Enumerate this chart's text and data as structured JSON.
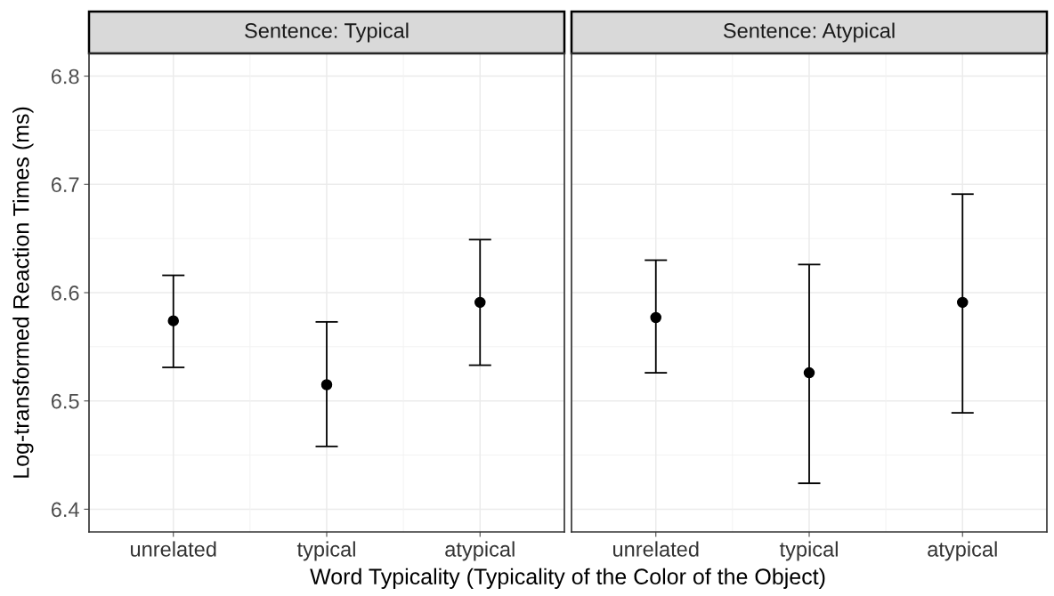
{
  "chart_data": [
    {
      "type": "scatter",
      "title": "Sentence: Typical",
      "xlabel": "Word Typicality (Typicality of the Color of the Object)",
      "ylabel": "Log-transformed Reaction Times (ms)",
      "categories": [
        "unrelated",
        "typical",
        "atypical"
      ],
      "series": [
        {
          "color": "#000000",
          "values": [
            6.574,
            6.515,
            6.591
          ],
          "errors": [
            [
              6.531,
              6.616
            ],
            [
              6.458,
              6.573
            ],
            [
              6.533,
              6.649
            ]
          ]
        }
      ],
      "ylim": [
        6.379,
        6.821
      ],
      "yticks": [
        6.4,
        6.5,
        6.6,
        6.7,
        6.8
      ],
      "grid": true,
      "marker": "circle"
    },
    {
      "type": "scatter",
      "title": "Sentence: Atypical",
      "categories": [
        "unrelated",
        "typical",
        "atypical"
      ],
      "series": [
        {
          "color": "#000000",
          "values": [
            6.577,
            6.526,
            6.591
          ],
          "errors": [
            [
              6.526,
              6.63
            ],
            [
              6.424,
              6.626
            ],
            [
              6.489,
              6.691
            ]
          ]
        }
      ],
      "ylim": [
        6.379,
        6.821
      ],
      "yticks": [
        6.4,
        6.5,
        6.6,
        6.7,
        6.8
      ],
      "grid": true,
      "marker": "circle",
      "tick_labels": "x"
    }
  ]
}
